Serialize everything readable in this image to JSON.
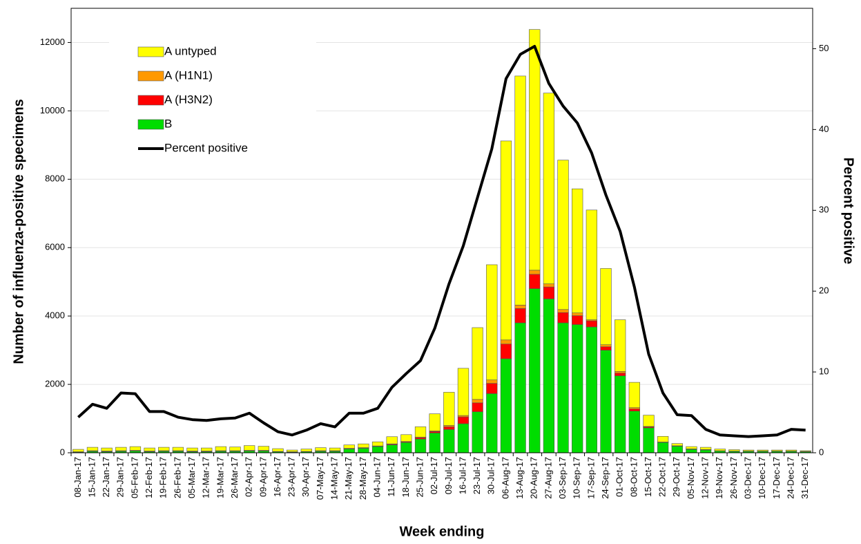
{
  "chart_data": {
    "type": "bar",
    "stacked": true,
    "y_label": "Number of influenza-positive specimens",
    "y2_label": "Percent positive",
    "x_label": "Week ending",
    "categories": [
      "08-Jan-17",
      "15-Jan-17",
      "22-Jan-17",
      "29-Jan-17",
      "05-Feb-17",
      "12-Feb-17",
      "19-Feb-17",
      "26-Feb-17",
      "05-Mar-17",
      "12-Mar-17",
      "19-Mar-17",
      "26-Mar-17",
      "02-Apr-17",
      "09-Apr-17",
      "16-Apr-17",
      "23-Apr-17",
      "30-Apr-17",
      "07-May-17",
      "14-May-17",
      "21-May-17",
      "28-May-17",
      "04-Jun-17",
      "11-Jun-17",
      "18-Jun-17",
      "25-Jun-17",
      "02-Jul-17",
      "09-Jul-17",
      "16-Jul-17",
      "23-Jul-17",
      "30-Jul-17",
      "06-Aug-17",
      "13-Aug-17",
      "20-Aug-17",
      "27-Aug-17",
      "03-Sep-17",
      "10-Sep-17",
      "17-Sep-17",
      "24-Sep-17",
      "01-Oct-17",
      "08-Oct-17",
      "15-Oct-17",
      "22-Oct-17",
      "29-Oct-17",
      "05-Nov-17",
      "12-Nov-17",
      "19-Nov-17",
      "26-Nov-17",
      "03-Dec-17",
      "10-Dec-17",
      "17-Dec-17",
      "24-Dec-17",
      "31-Dec-17"
    ],
    "series": [
      {
        "name": "B",
        "color": "#00dd00",
        "type": "bar",
        "values": [
          20,
          40,
          30,
          40,
          50,
          30,
          40,
          40,
          30,
          30,
          40,
          40,
          50,
          50,
          30,
          20,
          30,
          40,
          40,
          110,
          130,
          180,
          230,
          300,
          400,
          580,
          680,
          850,
          1200,
          1730,
          2750,
          3800,
          4800,
          4500,
          3800,
          3750,
          3680,
          3000,
          2250,
          1220,
          730,
          300,
          190,
          100,
          80,
          50,
          40,
          40,
          40,
          40,
          40,
          30
        ]
      },
      {
        "name": "A (H3N2)",
        "color": "#ff0000",
        "type": "bar",
        "values": [
          5,
          10,
          10,
          10,
          10,
          10,
          10,
          10,
          10,
          10,
          10,
          10,
          10,
          10,
          5,
          5,
          5,
          10,
          10,
          10,
          10,
          10,
          20,
          20,
          40,
          40,
          80,
          200,
          260,
          300,
          430,
          420,
          420,
          350,
          300,
          260,
          180,
          100,
          80,
          60,
          30,
          10,
          10,
          10,
          10,
          5,
          5,
          5,
          5,
          5,
          5,
          5
        ]
      },
      {
        "name": "A (H1N1)",
        "color": "#ff9900",
        "type": "bar",
        "values": [
          5,
          10,
          10,
          10,
          10,
          10,
          10,
          10,
          10,
          10,
          10,
          10,
          10,
          10,
          5,
          5,
          5,
          10,
          10,
          10,
          10,
          10,
          10,
          10,
          20,
          20,
          40,
          40,
          100,
          100,
          120,
          100,
          120,
          90,
          90,
          80,
          30,
          60,
          50,
          40,
          10,
          5,
          5,
          5,
          5,
          5,
          5,
          5,
          5,
          5,
          5,
          5
        ]
      },
      {
        "name": "A untyped",
        "color": "#ffff00",
        "type": "bar",
        "values": [
          70,
          100,
          90,
          100,
          110,
          90,
          100,
          100,
          90,
          90,
          120,
          110,
          140,
          120,
          80,
          50,
          70,
          90,
          80,
          100,
          110,
          120,
          210,
          200,
          300,
          500,
          970,
          1380,
          2100,
          3370,
          5820,
          6700,
          7040,
          5580,
          4370,
          3630,
          3210,
          2230,
          1510,
          740,
          330,
          165,
          65,
          65,
          65,
          50,
          40,
          30,
          30,
          30,
          30,
          20
        ]
      },
      {
        "name": "Percent positive",
        "color": "#000000",
        "type": "line",
        "axis": "y2",
        "values": [
          4.4,
          6.0,
          5.5,
          7.4,
          7.3,
          5.1,
          5.1,
          4.4,
          4.1,
          4.0,
          4.2,
          4.3,
          4.9,
          3.7,
          2.6,
          2.2,
          2.8,
          3.6,
          3.2,
          4.9,
          4.9,
          5.5,
          8.1,
          9.8,
          11.4,
          15.4,
          20.9,
          25.6,
          31.6,
          37.6,
          46.3,
          49.3,
          50.3,
          45.7,
          42.9,
          40.8,
          37.1,
          31.9,
          27.4,
          20.5,
          12.2,
          7.4,
          4.7,
          4.6,
          2.9,
          2.2,
          2.1,
          2.0,
          2.1,
          2.2,
          2.9,
          2.8
        ]
      }
    ],
    "legend_order": [
      3,
      2,
      1,
      0,
      4
    ],
    "ylim": [
      0,
      13000
    ],
    "yticks": [
      0,
      2000,
      4000,
      6000,
      8000,
      10000,
      12000
    ],
    "y2lim": [
      0,
      55
    ],
    "y2ticks": [
      0,
      10,
      20,
      30,
      40,
      50
    ],
    "grid": true,
    "legend": "upper left"
  }
}
